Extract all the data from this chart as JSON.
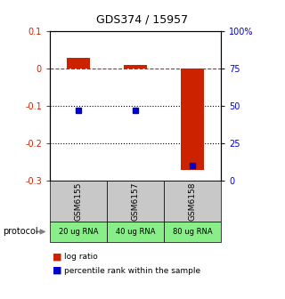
{
  "title": "GDS374 / 15957",
  "samples": [
    "GSM6155",
    "GSM6157",
    "GSM6158"
  ],
  "protocols": [
    "20 ug RNA",
    "40 ug RNA",
    "80 ug RNA"
  ],
  "log_ratios": [
    0.03,
    0.01,
    -0.27
  ],
  "percentile_ranks_pct": [
    47,
    47,
    10
  ],
  "ylim_left": [
    -0.3,
    0.1
  ],
  "ylim_right": [
    0,
    100
  ],
  "bar_width": 0.4,
  "red_color": "#cc2200",
  "blue_color": "#0000cc",
  "gray_bg": "#c8c8c8",
  "green_bg": "#88ee88",
  "legend_red": "log ratio",
  "legend_blue": "percentile rank within the sample",
  "dotted_lines": [
    -0.1,
    -0.2
  ],
  "dashed_line": 0.0,
  "right_ticks": [
    0,
    25,
    50,
    75,
    100
  ],
  "right_tick_labels": [
    "0",
    "25",
    "50",
    "75",
    "100%"
  ],
  "left_ticks": [
    -0.3,
    -0.2,
    -0.1,
    0.0,
    0.1
  ],
  "left_tick_labels": [
    "-0.3",
    "-0.2",
    "-0.1",
    "0",
    "0.1"
  ]
}
